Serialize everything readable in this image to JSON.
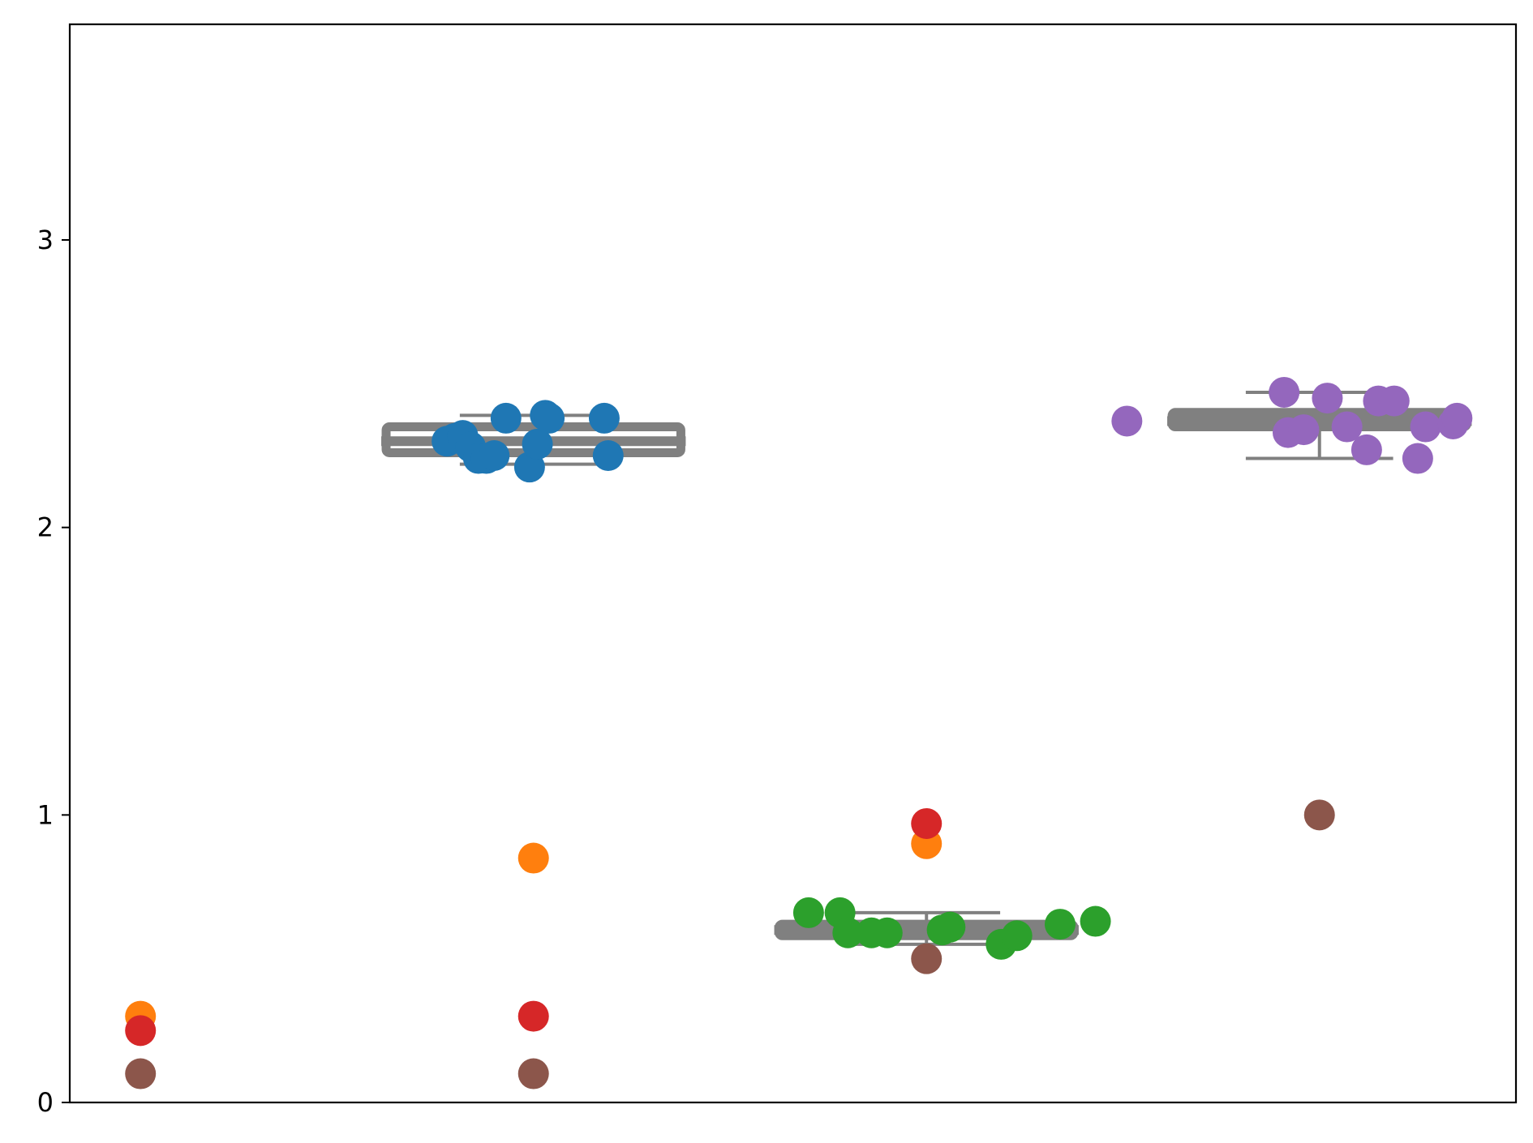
{
  "chart_data": {
    "type": "box-strip",
    "title": "",
    "xlabel": "",
    "ylabel": "",
    "ylim": [
      0,
      3.75
    ],
    "yticks": [
      0,
      1,
      2,
      3
    ],
    "ytick_labels": [
      "0",
      "1",
      "2",
      "3"
    ],
    "x_positions": [
      0,
      1,
      2,
      3
    ],
    "xlim": [
      -0.18,
      3.5
    ],
    "grid": false,
    "boxes": [
      {
        "x": 1,
        "q1": 2.26,
        "median": 2.3,
        "q3": 2.35,
        "whisker_low": 2.22,
        "whisker_high": 2.39,
        "width": 0.75
      },
      {
        "x": 2,
        "q1": 0.58,
        "median": 0.6,
        "q3": 0.62,
        "whisker_low": 0.55,
        "whisker_high": 0.66,
        "width": 0.75
      },
      {
        "x": 3,
        "q1": 2.35,
        "median": 2.37,
        "q3": 2.4,
        "whisker_low": 2.24,
        "whisker_high": 2.47,
        "width": 0.75
      }
    ],
    "box_color": "#808080",
    "series": [
      {
        "color": "#1f77b4",
        "points": [
          {
            "x": 0.78,
            "y": 2.3
          },
          {
            "x": 0.8,
            "y": 2.31
          },
          {
            "x": 0.82,
            "y": 2.32
          },
          {
            "x": 0.84,
            "y": 2.28
          },
          {
            "x": 0.86,
            "y": 2.24
          },
          {
            "x": 0.88,
            "y": 2.24
          },
          {
            "x": 0.9,
            "y": 2.25
          },
          {
            "x": 0.93,
            "y": 2.38
          },
          {
            "x": 0.99,
            "y": 2.21
          },
          {
            "x": 1.01,
            "y": 2.29
          },
          {
            "x": 1.03,
            "y": 2.39
          },
          {
            "x": 1.04,
            "y": 2.38
          },
          {
            "x": 1.18,
            "y": 2.38
          },
          {
            "x": 1.19,
            "y": 2.25
          }
        ]
      },
      {
        "color": "#2ca02c",
        "points": [
          {
            "x": 1.7,
            "y": 0.66
          },
          {
            "x": 1.78,
            "y": 0.66
          },
          {
            "x": 1.8,
            "y": 0.59
          },
          {
            "x": 1.86,
            "y": 0.59
          },
          {
            "x": 1.9,
            "y": 0.59
          },
          {
            "x": 2.04,
            "y": 0.6
          },
          {
            "x": 2.06,
            "y": 0.61
          },
          {
            "x": 2.19,
            "y": 0.55
          },
          {
            "x": 2.23,
            "y": 0.58
          },
          {
            "x": 2.34,
            "y": 0.62
          },
          {
            "x": 2.43,
            "y": 0.63
          }
        ]
      },
      {
        "color": "#9467bd",
        "points": [
          {
            "x": 2.51,
            "y": 2.37
          },
          {
            "x": 2.91,
            "y": 2.47
          },
          {
            "x": 2.92,
            "y": 2.33
          },
          {
            "x": 2.96,
            "y": 2.34
          },
          {
            "x": 3.02,
            "y": 2.45
          },
          {
            "x": 3.07,
            "y": 2.35
          },
          {
            "x": 3.12,
            "y": 2.27
          },
          {
            "x": 3.15,
            "y": 2.44
          },
          {
            "x": 3.19,
            "y": 2.44
          },
          {
            "x": 3.25,
            "y": 2.24
          },
          {
            "x": 3.27,
            "y": 2.35
          },
          {
            "x": 3.34,
            "y": 2.36
          },
          {
            "x": 3.35,
            "y": 2.38
          }
        ]
      },
      {
        "color": "#ff7f0e",
        "points": [
          {
            "x": 0,
            "y": 0.3
          },
          {
            "x": 1,
            "y": 0.85
          },
          {
            "x": 2,
            "y": 0.9
          }
        ]
      },
      {
        "color": "#d62728",
        "points": [
          {
            "x": 0,
            "y": 0.25
          },
          {
            "x": 1,
            "y": 0.3
          },
          {
            "x": 2,
            "y": 0.97
          }
        ]
      },
      {
        "color": "#8c564b",
        "points": [
          {
            "x": 0,
            "y": 0.1
          },
          {
            "x": 1,
            "y": 0.1
          },
          {
            "x": 2,
            "y": 0.5
          },
          {
            "x": 3,
            "y": 1.0
          }
        ]
      }
    ]
  }
}
